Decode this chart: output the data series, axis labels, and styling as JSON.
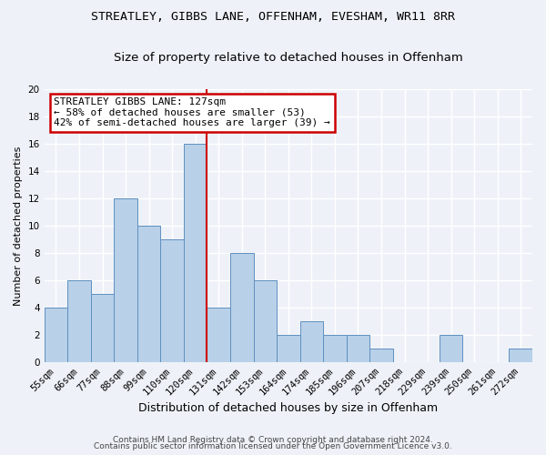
{
  "title1": "STREATLEY, GIBBS LANE, OFFENHAM, EVESHAM, WR11 8RR",
  "title2": "Size of property relative to detached houses in Offenham",
  "xlabel": "Distribution of detached houses by size in Offenham",
  "ylabel": "Number of detached properties",
  "categories": [
    "55sqm",
    "66sqm",
    "77sqm",
    "88sqm",
    "99sqm",
    "110sqm",
    "120sqm",
    "131sqm",
    "142sqm",
    "153sqm",
    "164sqm",
    "174sqm",
    "185sqm",
    "196sqm",
    "207sqm",
    "218sqm",
    "229sqm",
    "239sqm",
    "250sqm",
    "261sqm",
    "272sqm"
  ],
  "values": [
    4,
    6,
    5,
    12,
    10,
    9,
    16,
    4,
    8,
    6,
    2,
    3,
    2,
    2,
    1,
    0,
    0,
    2,
    0,
    0,
    1
  ],
  "bar_color": "#b8d0e8",
  "bar_edge_color": "#6090c0",
  "vline_color": "#cc0000",
  "annotation_text": "STREATLEY GIBBS LANE: 127sqm\n← 58% of detached houses are smaller (53)\n42% of semi-detached houses are larger (39) →",
  "annotation_box_color": "#ffffff",
  "annotation_box_edge_color": "#cc0000",
  "ylim": [
    0,
    20
  ],
  "yticks": [
    0,
    2,
    4,
    6,
    8,
    10,
    12,
    14,
    16,
    18,
    20
  ],
  "footer1": "Contains HM Land Registry data © Crown copyright and database right 2024.",
  "footer2": "Contains public sector information licensed under the Open Government Licence v3.0.",
  "bg_color": "#eef2f8",
  "grid_color": "#ffffff",
  "title1_fontsize": 9.5,
  "title2_fontsize": 9.5,
  "xlabel_fontsize": 9,
  "ylabel_fontsize": 8,
  "tick_fontsize": 7.5,
  "annot_fontsize": 8,
  "footer_fontsize": 6.5
}
